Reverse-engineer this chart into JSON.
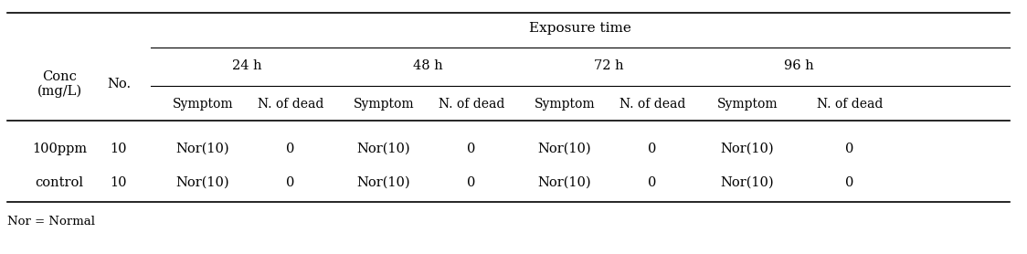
{
  "title": "Exposure time",
  "col_groups": [
    "24 h",
    "48 h",
    "72 h",
    "96 h"
  ],
  "sub_cols": [
    "Symptom",
    "N. of dead"
  ],
  "conc_label": "Conc\n(mg/L)",
  "no_label": "No.",
  "rows": [
    [
      "100ppm",
      "10",
      "Nor(10)",
      "0",
      "Nor(10)",
      "0",
      "Nor(10)",
      "0",
      "Nor(10)",
      "0"
    ],
    [
      "control",
      "10",
      "Nor(10)",
      "0",
      "Nor(10)",
      "0",
      "Nor(10)",
      "0",
      "Nor(10)",
      "0"
    ]
  ],
  "footnote": "Nor = Normal",
  "bg_color": "#ffffff",
  "text_color": "#000000",
  "font_size": 10.5
}
